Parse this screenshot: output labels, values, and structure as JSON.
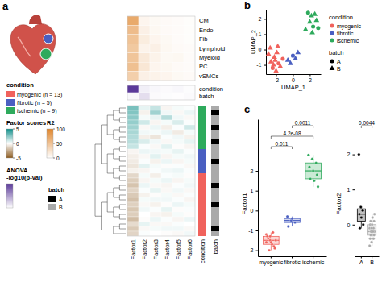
{
  "chart_data": [
    {
      "type": "heatmap",
      "panel_label": "a",
      "rows": [
        "CM",
        "Endo",
        "Fib",
        "Lymphoid",
        "Myeloid",
        "PC",
        "vSMCs"
      ],
      "cells": [
        [
          70,
          8,
          5,
          4,
          3,
          2
        ],
        [
          55,
          12,
          6,
          4,
          3,
          2
        ],
        [
          50,
          15,
          8,
          5,
          3,
          2
        ],
        [
          45,
          10,
          12,
          6,
          4,
          3
        ],
        [
          48,
          18,
          10,
          5,
          6,
          3
        ],
        [
          52,
          20,
          8,
          6,
          4,
          3
        ],
        [
          40,
          12,
          10,
          8,
          5,
          4
        ]
      ],
      "colorbar": {
        "title": "R2",
        "lim": [
          0,
          100
        ],
        "ticks": [
          0,
          50,
          100
        ],
        "colors": [
          "#ffffff",
          "#e0862c"
        ]
      }
    },
    {
      "type": "heatmap",
      "rows": [
        "condition",
        "batch"
      ],
      "cells": [
        [
          12,
          1,
          0.5,
          0.3,
          0.5,
          0.2
        ],
        [
          0.5,
          2,
          0.3,
          0.2,
          0.1,
          0.3
        ]
      ],
      "colorbar": {
        "title": [
          "ANOVA",
          "-log10(p-val)"
        ],
        "lim": [
          0,
          12
        ],
        "colors": [
          "#ffffff",
          "#5b3a9a"
        ]
      }
    },
    {
      "type": "heatmap",
      "columns": [
        "Factor1",
        "Factor2",
        "Factor3",
        "Factor4",
        "Factor5",
        "Factor6"
      ],
      "cells": [
        [
          2.8,
          0.5,
          1.2,
          -0.3,
          0.2,
          0.1
        ],
        [
          2.6,
          -0.4,
          2.0,
          0.3,
          -0.2,
          0.4
        ],
        [
          2.4,
          0.2,
          0.5,
          1.5,
          0.3,
          -0.2
        ],
        [
          2.2,
          1.0,
          -0.3,
          0.2,
          0.8,
          0.1
        ],
        [
          2.0,
          -0.2,
          0.4,
          -0.5,
          0.1,
          1.0
        ],
        [
          1.8,
          0.3,
          0.2,
          0.4,
          -0.6,
          0.2
        ],
        [
          1.6,
          -0.5,
          -0.8,
          0.1,
          0.3,
          -0.4
        ],
        [
          1.5,
          0.8,
          0.3,
          -0.2,
          0.2,
          0.5
        ],
        [
          1.2,
          0.1,
          -0.2,
          0.6,
          -0.1,
          -0.3
        ],
        [
          -0.3,
          0.4,
          0.3,
          0.2,
          0.5,
          0.1
        ],
        [
          -0.5,
          -0.2,
          0.6,
          -0.3,
          0.2,
          0.3
        ],
        [
          -0.6,
          0.1,
          -0.4,
          0.4,
          -0.3,
          0.2
        ],
        [
          -0.8,
          0.6,
          0.2,
          -0.1,
          0.1,
          -0.2
        ],
        [
          -0.4,
          -0.3,
          0.1,
          0.3,
          0.4,
          0.1
        ],
        [
          -1.2,
          0.2,
          -0.5,
          0.1,
          0.2,
          -0.1
        ],
        [
          -1.5,
          -0.3,
          0.2,
          0.4,
          -0.3,
          0.2
        ],
        [
          -1.8,
          0.4,
          -0.2,
          -0.3,
          0.1,
          0.3
        ],
        [
          -1.3,
          0.1,
          0.5,
          -0.2,
          0.3,
          -0.2
        ],
        [
          -1.6,
          -0.4,
          -0.1,
          0.2,
          -0.2,
          0.1
        ],
        [
          -1.9,
          0.2,
          0.3,
          0.3,
          0.1,
          -0.3
        ],
        [
          -1.4,
          -0.2,
          -0.4,
          -0.1,
          0.4,
          0.2
        ],
        [
          -1.7,
          0.3,
          0.1,
          0.5,
          -0.1,
          0.1
        ],
        [
          -1.5,
          0.0,
          -0.3,
          -0.4,
          0.2,
          -0.1
        ],
        [
          -2.0,
          -0.1,
          0.4,
          0.1,
          -0.3,
          0.4
        ],
        [
          -1.1,
          0.5,
          -0.2,
          -0.2,
          0.1,
          0.0
        ],
        [
          -1.6,
          -0.2,
          0.2,
          0.3,
          0.3,
          -0.2
        ],
        [
          -1.3,
          0.1,
          0.0,
          -0.1,
          -0.2,
          0.3
        ]
      ],
      "annotations": [
        {
          "name": "condition",
          "levels": [
            "myogenic",
            "fibrotic",
            "ischemic"
          ],
          "colors": [
            "#f0625c",
            "#4a5fc1",
            "#2eaa5c"
          ],
          "values": [
            "ischemic",
            "ischemic",
            "ischemic",
            "ischemic",
            "ischemic",
            "ischemic",
            "ischemic",
            "ischemic",
            "ischemic",
            "fibrotic",
            "fibrotic",
            "fibrotic",
            "fibrotic",
            "fibrotic",
            "myogenic",
            "myogenic",
            "myogenic",
            "myogenic",
            "myogenic",
            "myogenic",
            "myogenic",
            "myogenic",
            "myogenic",
            "myogenic",
            "myogenic",
            "myogenic",
            "myogenic"
          ]
        },
        {
          "name": "batch",
          "levels": [
            "A",
            "B"
          ],
          "colors": [
            "#000000",
            "#aaaaaa"
          ],
          "values": [
            "B",
            "A",
            "B",
            "B",
            "A",
            "B",
            "B",
            "A",
            "B",
            "B",
            "B",
            "A",
            "B",
            "B",
            "B",
            "B",
            "A",
            "B",
            "B",
            "B",
            "A",
            "B",
            "B",
            "B",
            "B",
            "A",
            "B"
          ]
        }
      ],
      "colorbar": {
        "title": "Factor scores",
        "lim": [
          -5,
          5
        ],
        "ticks": [
          -5,
          0,
          5
        ],
        "colors": [
          "#8c5a1e",
          "#ffffff",
          "#0f8f8a"
        ]
      },
      "legends": [
        {
          "title": "condition",
          "entries": [
            {
              "name": "myogenic (n = 13)",
              "color": "#f0625c"
            },
            {
              "name": "fibrotic (n = 5)",
              "color": "#4a5fc1"
            },
            {
              "name": "ischemic (n = 9)",
              "color": "#2eaa5c"
            }
          ]
        },
        {
          "title": "batch",
          "entries": [
            {
              "name": "A",
              "color": "#000000"
            },
            {
              "name": "B",
              "color": "#aaaaaa"
            }
          ]
        }
      ]
    },
    {
      "type": "scatter",
      "panel_label": "b",
      "xlabel": "UMAP_1",
      "ylabel": "UMAP_2",
      "xlim": [
        -3.2,
        3.3
      ],
      "ylim": [
        -1.6,
        2.6
      ],
      "xticks": [
        -2,
        0,
        2
      ],
      "yticks": [
        -1,
        0,
        1,
        2
      ],
      "series": [
        {
          "name": "myogenic",
          "color": "#f0625c",
          "x": [
            -2.9,
            -2.6,
            -2.4,
            -2.2,
            -2.0,
            -1.9,
            -1.7,
            -1.5,
            -2.7,
            -2.3,
            -1.8,
            -1.2,
            -2.1
          ],
          "values": [
            -0.3,
            -0.8,
            -1.2,
            -0.5,
            -1.4,
            -0.2,
            -0.9,
            -1.1,
            0.1,
            -1.0,
            0.2,
            -0.6,
            -0.7
          ],
          "batch": [
            "B",
            "B",
            "A",
            "B",
            "B",
            "B",
            "A",
            "B",
            "B",
            "B",
            "B",
            "A",
            "B"
          ]
        },
        {
          "name": "fibrotic",
          "color": "#4a5fc1",
          "x": [
            -0.6,
            -0.3,
            0.0,
            0.3,
            0.6
          ],
          "values": [
            -0.7,
            -0.9,
            -0.4,
            -0.6,
            -0.2
          ],
          "batch": [
            "B",
            "B",
            "A",
            "B",
            "B"
          ]
        },
        {
          "name": "ischemic",
          "color": "#2eaa5c",
          "x": [
            1.5,
            1.8,
            2.0,
            2.2,
            2.4,
            2.6,
            2.8,
            3.0,
            2.3
          ],
          "values": [
            1.3,
            2.4,
            1.8,
            2.2,
            1.5,
            2.3,
            1.9,
            1.4,
            1.1
          ],
          "batch": [
            "B",
            "A",
            "B",
            "B",
            "A",
            "B",
            "B",
            "A",
            "B"
          ]
        }
      ],
      "legends": [
        {
          "title": "condition"
        },
        {
          "title": "batch",
          "entries": [
            {
              "name": "A",
              "marker": "circle"
            },
            {
              "name": "B",
              "marker": "triangle"
            }
          ]
        }
      ]
    },
    {
      "type": "box",
      "panel_label": "c",
      "ylabel": "Factor1",
      "ylim": [
        -2.3,
        4.6
      ],
      "yticks": [
        -2,
        -1,
        0,
        1,
        2
      ],
      "groups": [
        {
          "name": "myogenic",
          "color": "#f0625c",
          "values": [
            -1.2,
            -1.5,
            -1.8,
            -1.3,
            -1.6,
            -1.9,
            -1.4,
            -1.7,
            -1.5,
            -2.0,
            -1.1,
            -1.6,
            -1.3
          ],
          "box": {
            "whisker_low": -2.0,
            "q1": -1.7,
            "median": -1.5,
            "q3": -1.3,
            "whisker_high": -1.1
          }
        },
        {
          "name": "fibrotic",
          "color": "#4a5fc1",
          "values": [
            -0.3,
            -0.5,
            -0.6,
            -0.8,
            -0.4
          ],
          "box": {
            "whisker_low": -0.8,
            "q1": -0.6,
            "median": -0.5,
            "q3": -0.4,
            "whisker_high": -0.3
          }
        },
        {
          "name": "ischemic",
          "color": "#2eaa5c",
          "values": [
            2.8,
            2.6,
            2.4,
            2.2,
            2.0,
            1.8,
            1.6,
            1.5,
            1.2
          ],
          "box": {
            "whisker_low": 1.2,
            "q1": 1.6,
            "median": 2.0,
            "q3": 2.4,
            "whisker_high": 2.8
          }
        }
      ],
      "p_values": [
        {
          "groups": [
            "myogenic",
            "fibrotic"
          ],
          "value": 0.011,
          "label": "0.011"
        },
        {
          "groups": [
            "myogenic",
            "ischemic"
          ],
          "value": 4.2e-08,
          "label": "4.2e-08"
        },
        {
          "groups": [
            "fibrotic",
            "ischemic"
          ],
          "value": 0.0011,
          "label": "0.0011"
        }
      ]
    },
    {
      "type": "box",
      "ylabel": "Factor2",
      "ylim": [
        -0.9,
        3.0
      ],
      "yticks": [
        0,
        1,
        2
      ],
      "groups": [
        {
          "name": "A",
          "color": "#000000",
          "values": [
            2.0,
            0.5,
            0.4,
            0.3,
            0.2,
            0.0,
            -0.1
          ],
          "box": {
            "whisker_low": -0.1,
            "q1": 0.1,
            "median": 0.3,
            "q3": 0.45,
            "whisker_high": 0.5
          }
        },
        {
          "name": "B",
          "color": "#aaaaaa",
          "values": [
            -0.6,
            -0.5,
            -0.4,
            -0.4,
            -0.3,
            -0.3,
            -0.3,
            -0.2,
            -0.2,
            -0.2,
            -0.2,
            -0.1,
            -0.1,
            -0.1,
            0.0,
            0.0,
            0.1,
            0.1,
            0.2,
            0.3
          ],
          "box": {
            "whisker_low": -0.6,
            "q1": -0.3,
            "median": -0.2,
            "q3": 0.0,
            "whisker_high": 0.3
          }
        }
      ],
      "p_values": [
        {
          "groups": [
            "A",
            "B"
          ],
          "value": 0.0044,
          "label": "0.0044"
        }
      ]
    }
  ]
}
